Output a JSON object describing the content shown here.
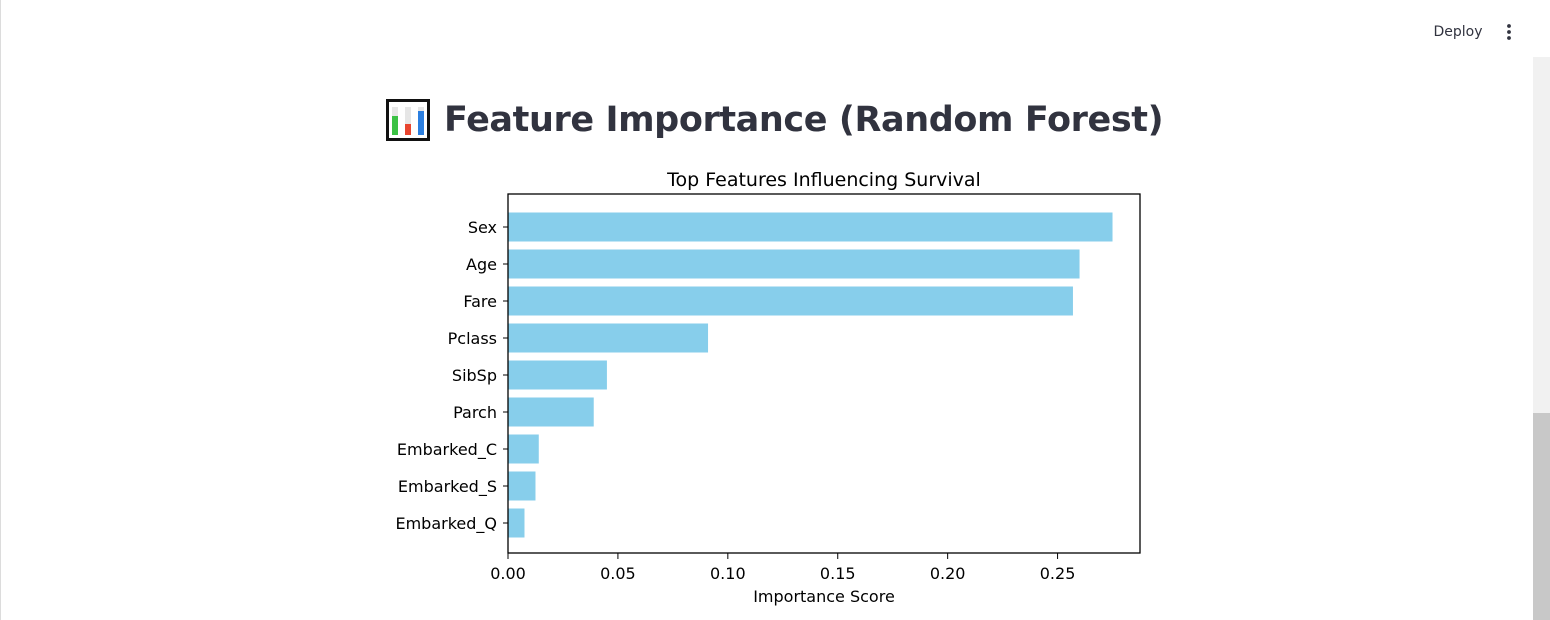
{
  "toolbar": {
    "deploy_label": "Deploy",
    "menu_icon": "vertical-ellipsis-icon"
  },
  "page": {
    "title": "Feature Importance (Random Forest)",
    "title_icon": "bar-chart-icon"
  },
  "chart_data": {
    "type": "bar",
    "orientation": "horizontal",
    "title": "Top Features Influencing Survival",
    "xlabel": "Importance Score",
    "ylabel": "",
    "categories": [
      "Sex",
      "Age",
      "Fare",
      "Pclass",
      "SibSp",
      "Parch",
      "Embarked_C",
      "Embarked_S",
      "Embarked_Q"
    ],
    "values": [
      0.275,
      0.26,
      0.257,
      0.091,
      0.045,
      0.039,
      0.014,
      0.0125,
      0.0075
    ],
    "xlim": [
      0,
      0.2875
    ],
    "xticks": [
      "0.00",
      "0.05",
      "0.10",
      "0.15",
      "0.20",
      "0.25"
    ],
    "bar_color": "#87ceeb",
    "grid": false
  }
}
